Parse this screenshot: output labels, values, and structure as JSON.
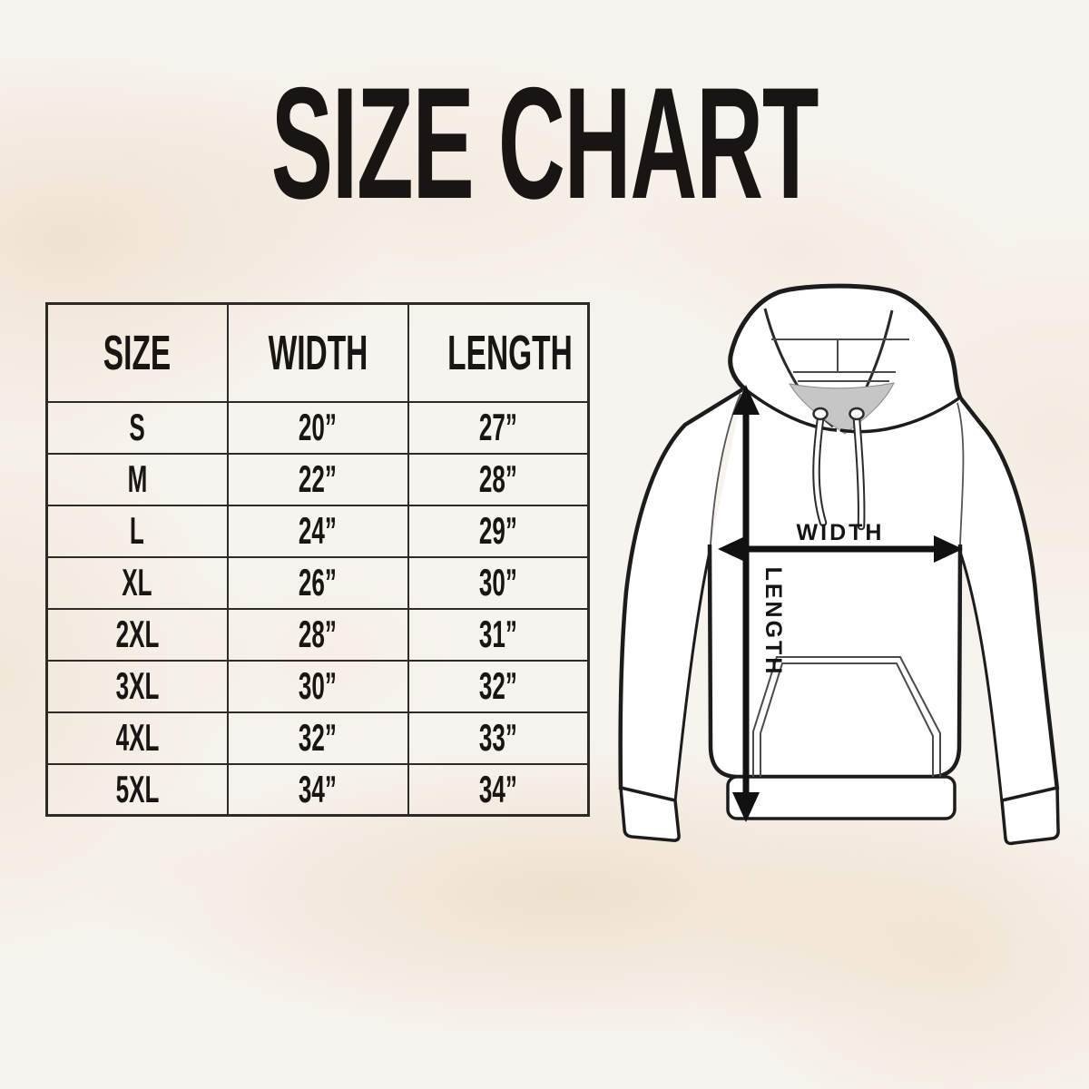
{
  "title": "SIZE CHART",
  "table": {
    "headers": [
      "SIZE",
      "WIDTH",
      "LENGTH"
    ],
    "rows": [
      {
        "size": "S",
        "width": "20”",
        "length": "27”"
      },
      {
        "size": "M",
        "width": "22”",
        "length": "28”"
      },
      {
        "size": "L",
        "width": "24”",
        "length": "29”"
      },
      {
        "size": "XL",
        "width": "26”",
        "length": "30”"
      },
      {
        "size": "2XL",
        "width": "28”",
        "length": "31”"
      },
      {
        "size": "3XL",
        "width": "30”",
        "length": "32”"
      },
      {
        "size": "4XL",
        "width": "32”",
        "length": "33”"
      },
      {
        "size": "5XL",
        "width": "34”",
        "length": "34”"
      }
    ]
  },
  "diagram": {
    "width_label": "WIDTH",
    "length_label": "LENGTH"
  },
  "colors": {
    "background": "#f7f4f0",
    "watercolor_wash": "#ead7bf",
    "ink": "#181512",
    "table_border": "#2e2b27",
    "garment_fill": "#ffffff",
    "garment_outline": "#1c1c1c",
    "hood_interior_shadow": "#c6c6c6"
  }
}
